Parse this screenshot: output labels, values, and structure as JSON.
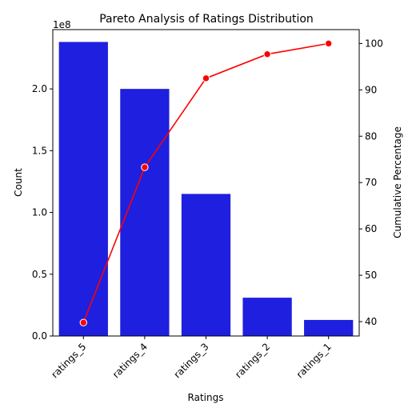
{
  "chart_data": {
    "type": "bar",
    "title": "Pareto Analysis of Ratings Distribution",
    "xlabel": "Ratings",
    "ylabel": "Count",
    "y2label": "Cumulative Percentage",
    "y_multiplier_label": "1e8",
    "categories": [
      "ratings_5",
      "ratings_4",
      "ratings_3",
      "ratings_2",
      "ratings_1"
    ],
    "series": [
      {
        "name": "Count",
        "kind": "bar",
        "axis": "left",
        "color": "#1f1fdf",
        "values": [
          238000000,
          200000000,
          115000000,
          31000000,
          13000000
        ]
      },
      {
        "name": "Cumulative Percentage",
        "kind": "line",
        "axis": "right",
        "color": "#ff0000",
        "values": [
          39.8,
          73.3,
          92.5,
          97.7,
          100.0
        ]
      }
    ],
    "ylim": [
      0,
      248000000
    ],
    "y2lim": [
      36.9,
      103.0
    ],
    "yticks": [
      0,
      50000000,
      100000000,
      150000000,
      200000000
    ],
    "ytick_labels": [
      "0.0",
      "0.5",
      "1.0",
      "1.5",
      "2.0"
    ],
    "y2ticks": [
      40,
      50,
      60,
      70,
      80,
      90,
      100
    ],
    "y2tick_labels": [
      "40",
      "50",
      "60",
      "70",
      "80",
      "90",
      "100"
    ],
    "grid": false,
    "legend": "none"
  }
}
